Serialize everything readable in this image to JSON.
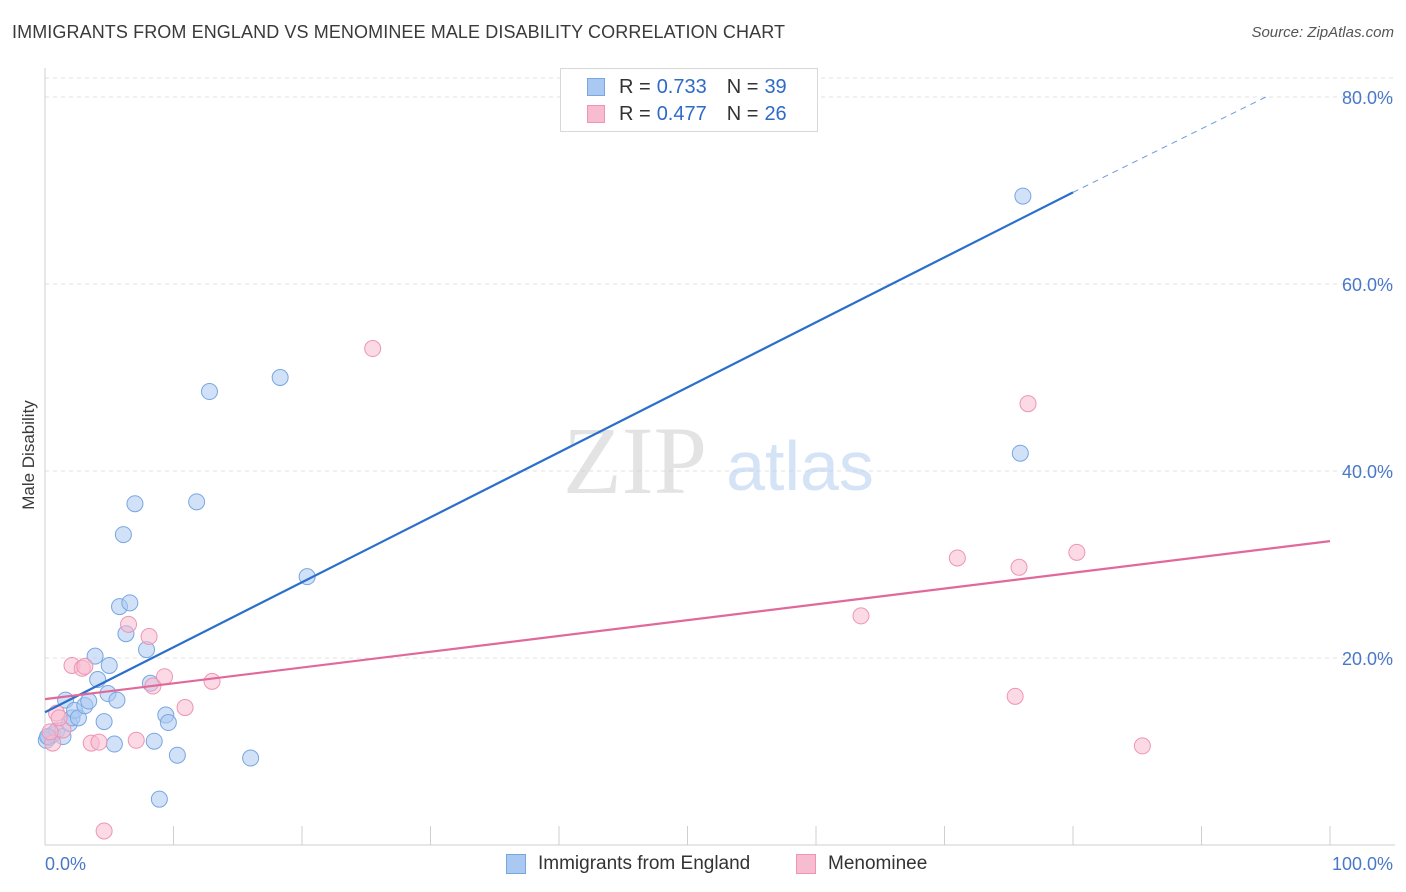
{
  "title": "IMMIGRANTS FROM ENGLAND VS MENOMINEE MALE DISABILITY CORRELATION CHART",
  "source": "Source: ZipAtlas.com",
  "watermark": {
    "zip": "ZIP",
    "atlas": "atlas"
  },
  "colors": {
    "england_fill": "#a9c8f2",
    "england_stroke": "#7aa6e0",
    "england_line": "#2a6fcc",
    "menominee_fill": "#f7bcd0",
    "menominee_stroke": "#ee94b4",
    "menominee_line": "#e0699a",
    "grid": "#e0e0e0",
    "tick_text": "#4a78c8"
  },
  "legend": {
    "england": {
      "r_label": "R =",
      "r_value": "0.733",
      "n_label": "N =",
      "n_value": "39"
    },
    "menominee": {
      "r_label": "R =",
      "r_value": "0.477",
      "n_label": "N =",
      "n_value": "26"
    }
  },
  "bottom_legend": {
    "england": "Immigrants from England",
    "menominee": "Menominee"
  },
  "chart_data": {
    "type": "scatter",
    "title": "IMMIGRANTS FROM ENGLAND VS MENOMINEE MALE DISABILITY CORRELATION CHART",
    "xlabel": "",
    "ylabel": "Male Disability",
    "xlim": [
      0,
      100
    ],
    "ylim": [
      0,
      80
    ],
    "x_tick_labels": [
      "0.0%",
      "100.0%"
    ],
    "y_ticks": [
      20,
      40,
      60,
      80
    ],
    "y_tick_labels": [
      "20.0%",
      "40.0%",
      "60.0%",
      "80.0%"
    ],
    "grid": true,
    "legend_position": "top-center",
    "series": [
      {
        "name": "Immigrants from England",
        "color": "#7aa6e0",
        "points": [
          [
            0.3,
            11.5
          ],
          [
            0.6,
            11.8
          ],
          [
            0.9,
            12.2
          ],
          [
            1.4,
            11.6
          ],
          [
            1.6,
            15.5
          ],
          [
            1.9,
            13.0
          ],
          [
            2.1,
            13.6
          ],
          [
            2.3,
            14.4
          ],
          [
            2.6,
            13.6
          ],
          [
            3.1,
            14.9
          ],
          [
            3.4,
            15.4
          ],
          [
            3.9,
            20.2
          ],
          [
            4.1,
            17.7
          ],
          [
            4.6,
            13.2
          ],
          [
            4.9,
            16.2
          ],
          [
            5.0,
            19.2
          ],
          [
            5.4,
            10.8
          ],
          [
            5.6,
            15.5
          ],
          [
            5.8,
            25.5
          ],
          [
            6.3,
            22.6
          ],
          [
            6.6,
            25.9
          ],
          [
            7.0,
            36.5
          ],
          [
            6.1,
            33.2
          ],
          [
            7.9,
            20.9
          ],
          [
            8.2,
            17.3
          ],
          [
            8.5,
            11.1
          ],
          [
            8.9,
            4.9
          ],
          [
            9.4,
            13.9
          ],
          [
            9.6,
            13.1
          ],
          [
            10.3,
            9.6
          ],
          [
            11.8,
            36.7
          ],
          [
            12.8,
            48.5
          ],
          [
            16.0,
            9.3
          ],
          [
            18.3,
            50.0
          ],
          [
            20.4,
            28.7
          ],
          [
            75.9,
            41.9
          ],
          [
            76.1,
            69.4
          ],
          [
            0.1,
            11.2
          ],
          [
            0.2,
            11.6
          ]
        ],
        "trendline": {
          "x_start": 0.0,
          "y_start": 14.2,
          "x_end": 80.0,
          "y_end": 69.8,
          "dashed_to_x": 95.0,
          "dashed_to_y": 80.0
        }
      },
      {
        "name": "Menominee",
        "color": "#ee94b4",
        "points": [
          [
            0.6,
            10.9
          ],
          [
            0.9,
            14.1
          ],
          [
            1.4,
            12.3
          ],
          [
            2.1,
            19.2
          ],
          [
            2.9,
            18.9
          ],
          [
            3.1,
            19.1
          ],
          [
            3.6,
            10.9
          ],
          [
            4.2,
            11.0
          ],
          [
            4.6,
            1.5
          ],
          [
            6.5,
            23.6
          ],
          [
            7.1,
            11.2
          ],
          [
            8.1,
            22.3
          ],
          [
            8.4,
            17.0
          ],
          [
            9.3,
            18.0
          ],
          [
            10.9,
            14.7
          ],
          [
            13.0,
            17.5
          ],
          [
            25.5,
            53.1
          ],
          [
            63.5,
            24.5
          ],
          [
            71.0,
            30.7
          ],
          [
            75.5,
            15.9
          ],
          [
            75.8,
            29.7
          ],
          [
            76.5,
            47.2
          ],
          [
            80.3,
            31.3
          ],
          [
            85.4,
            10.6
          ],
          [
            0.4,
            12.1
          ],
          [
            1.1,
            13.6
          ]
        ],
        "trendline": {
          "x_start": 0.0,
          "y_start": 15.6,
          "x_end": 100.0,
          "y_end": 32.5
        }
      }
    ]
  }
}
